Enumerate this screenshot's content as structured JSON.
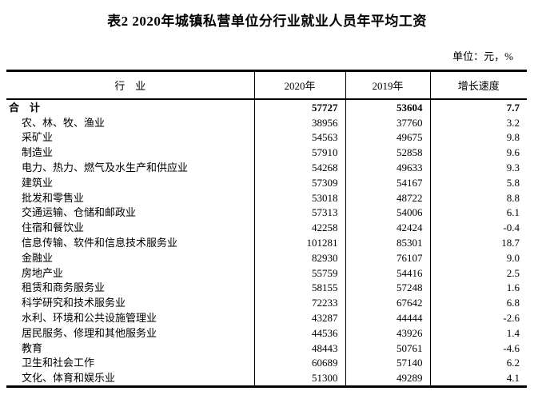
{
  "page": {
    "title": "表2 2020年城镇私营单位分行业就业人员年平均工资",
    "unit_note": "单位：元，%"
  },
  "table": {
    "columns": [
      "行　业",
      "2020年",
      "2019年",
      "增长速度"
    ],
    "rows": [
      [
        "合　计",
        "57727",
        "53604",
        "7.7"
      ],
      [
        "农、林、牧、渔业",
        "38956",
        "37760",
        "3.2"
      ],
      [
        "采矿业",
        "54563",
        "49675",
        "9.8"
      ],
      [
        "制造业",
        "57910",
        "52858",
        "9.6"
      ],
      [
        "电力、热力、燃气及水生产和供应业",
        "54268",
        "49633",
        "9.3"
      ],
      [
        "建筑业",
        "57309",
        "54167",
        "5.8"
      ],
      [
        "批发和零售业",
        "53018",
        "48722",
        "8.8"
      ],
      [
        "交通运输、仓储和邮政业",
        "57313",
        "54006",
        "6.1"
      ],
      [
        "住宿和餐饮业",
        "42258",
        "42424",
        "-0.4"
      ],
      [
        "信息传输、软件和信息技术服务业",
        "101281",
        "85301",
        "18.7"
      ],
      [
        "金融业",
        "82930",
        "76107",
        "9.0"
      ],
      [
        "房地产业",
        "55759",
        "54416",
        "2.5"
      ],
      [
        "租赁和商务服务业",
        "58155",
        "57248",
        "1.6"
      ],
      [
        "科学研究和技术服务业",
        "72233",
        "67642",
        "6.8"
      ],
      [
        "水利、环境和公共设施管理业",
        "43287",
        "44444",
        "-2.6"
      ],
      [
        "居民服务、修理和其他服务业",
        "44536",
        "43926",
        "1.4"
      ],
      [
        "教育",
        "48443",
        "50761",
        "-4.6"
      ],
      [
        "卫生和社会工作",
        "60689",
        "57140",
        "6.2"
      ],
      [
        "文化、体育和娱乐业",
        "51300",
        "49289",
        "4.1"
      ]
    ]
  }
}
